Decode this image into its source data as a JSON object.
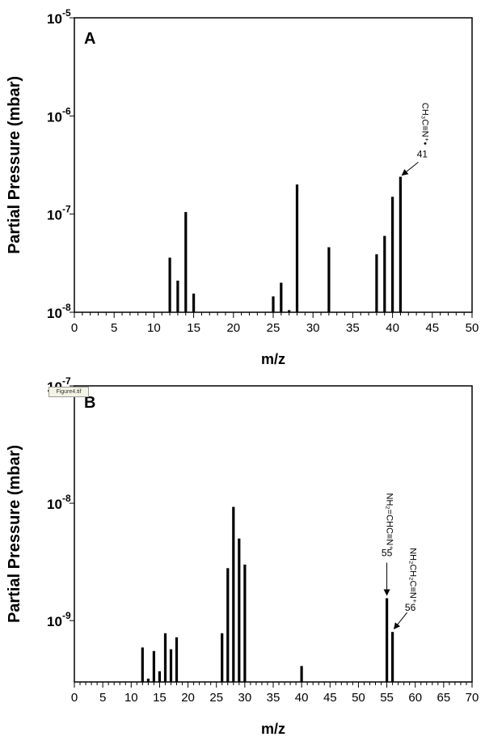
{
  "file_tag": "Figure4.tif",
  "chart_data": [
    {
      "type": "bar",
      "panel": "A",
      "xlabel": "m/z",
      "ylabel": "Partial Pressure (mbar)",
      "xlim": [
        0,
        50
      ],
      "x_ticks": [
        0,
        5,
        10,
        15,
        20,
        25,
        30,
        35,
        40,
        45,
        50
      ],
      "y_scale": "log",
      "ylim": [
        1e-08,
        1e-05
      ],
      "y_ticks": [
        {
          "base": "10",
          "exp": "-8"
        },
        {
          "base": "10",
          "exp": "-7"
        },
        {
          "base": "10",
          "exp": "-6"
        },
        {
          "base": "10",
          "exp": "-5"
        }
      ],
      "x": [
        12,
        13,
        14,
        15,
        25,
        26,
        27,
        28,
        32,
        38,
        39,
        40,
        41
      ],
      "values": [
        3.6e-08,
        2.1e-08,
        1.05e-07,
        1.55e-08,
        1.45e-08,
        2e-08,
        1.05e-08,
        2e-07,
        4.6e-08,
        3.9e-08,
        6e-08,
        1.5e-07,
        2.4e-07
      ],
      "annotations": [
        {
          "x": 41,
          "mz": "41",
          "formula": "CH₃C≡N⁺•"
        }
      ]
    },
    {
      "type": "bar",
      "panel": "B",
      "xlabel": "m/z",
      "ylabel": "Partial Pressure (mbar)",
      "xlim": [
        0,
        70
      ],
      "x_ticks": [
        0,
        5,
        10,
        15,
        20,
        25,
        30,
        35,
        40,
        45,
        50,
        55,
        60,
        65,
        70
      ],
      "y_scale": "log",
      "ylim": [
        3e-10,
        1e-07
      ],
      "y_ticks": [
        {
          "base": "10",
          "exp": "-9"
        },
        {
          "base": "10",
          "exp": "-8"
        },
        {
          "base": "10",
          "exp": "-7"
        }
      ],
      "x": [
        12,
        13,
        14,
        15,
        16,
        17,
        18,
        26,
        27,
        28,
        29,
        30,
        40,
        55,
        56
      ],
      "values": [
        5.9e-10,
        3.2e-10,
        5.5e-10,
        3.7e-10,
        7.8e-10,
        5.7e-10,
        7.2e-10,
        7.8e-10,
        2.8e-09,
        9.3e-09,
        5e-09,
        3e-09,
        4.1e-10,
        1.55e-09,
        8e-10
      ],
      "annotations": [
        {
          "x": 55,
          "mz": "55",
          "formula": "NH₂=CHC≡N⁺"
        },
        {
          "x": 56,
          "mz": "56",
          "formula": "NH₂CH₂C≡N⁺"
        }
      ]
    }
  ]
}
